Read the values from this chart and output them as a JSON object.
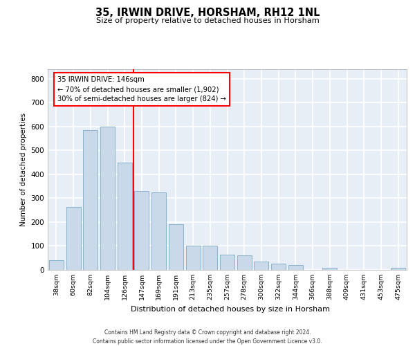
{
  "title1": "35, IRWIN DRIVE, HORSHAM, RH12 1NL",
  "title2": "Size of property relative to detached houses in Horsham",
  "xlabel": "Distribution of detached houses by size in Horsham",
  "ylabel": "Number of detached properties",
  "bar_color": "#c9d9ea",
  "bar_edge_color": "#7aaac8",
  "categories": [
    "38sqm",
    "60sqm",
    "82sqm",
    "104sqm",
    "126sqm",
    "147sqm",
    "169sqm",
    "191sqm",
    "213sqm",
    "235sqm",
    "257sqm",
    "278sqm",
    "300sqm",
    "322sqm",
    "344sqm",
    "366sqm",
    "388sqm",
    "409sqm",
    "431sqm",
    "453sqm",
    "475sqm"
  ],
  "values": [
    40,
    265,
    585,
    600,
    450,
    330,
    325,
    190,
    100,
    100,
    65,
    60,
    35,
    25,
    20,
    0,
    10,
    0,
    0,
    0,
    10
  ],
  "ylim": [
    0,
    840
  ],
  "yticks": [
    0,
    100,
    200,
    300,
    400,
    500,
    600,
    700,
    800
  ],
  "marker_bin_index": 5,
  "annotation_line1": "35 IRWIN DRIVE: 146sqm",
  "annotation_line2": "← 70% of detached houses are smaller (1,902)",
  "annotation_line3": "30% of semi-detached houses are larger (824) →",
  "bg_color": "#e8eef6",
  "grid_color": "#ffffff",
  "footer1": "Contains HM Land Registry data © Crown copyright and database right 2024.",
  "footer2": "Contains public sector information licensed under the Open Government Licence v3.0."
}
